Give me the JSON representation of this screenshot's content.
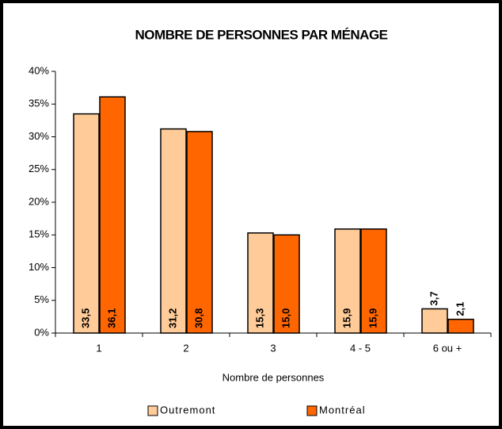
{
  "chart_data": {
    "type": "bar",
    "title": "NOMBRE DE PERSONNES PAR MÉNAGE",
    "x_label": "Nombre de personnes",
    "categories": [
      "1",
      "2",
      "3",
      "4 - 5",
      "6 ou +"
    ],
    "series": [
      {
        "name": "Outremont",
        "color": "#FFCC99",
        "values": [
          33.5,
          31.2,
          15.3,
          15.9,
          3.7
        ],
        "value_labels": [
          "33,5",
          "31,2",
          "15,3",
          "15,9",
          "3,7"
        ]
      },
      {
        "name": "Montréal",
        "color": "#FF6600",
        "values": [
          36.1,
          30.8,
          15.0,
          15.9,
          2.1
        ],
        "value_labels": [
          "36,1",
          "30,8",
          "15,0",
          "15,9",
          "2,1"
        ]
      }
    ],
    "ylim": [
      0,
      40
    ],
    "yticks": [
      {
        "value": 0,
        "label": "0%"
      },
      {
        "value": 5,
        "label": "5%"
      },
      {
        "value": 10,
        "label": "10%"
      },
      {
        "value": 15,
        "label": "15%"
      },
      {
        "value": 20,
        "label": "20%"
      },
      {
        "value": 25,
        "label": "25%"
      },
      {
        "value": 30,
        "label": "30%"
      },
      {
        "value": 35,
        "label": "35%"
      },
      {
        "value": 40,
        "label": "40%"
      }
    ]
  }
}
